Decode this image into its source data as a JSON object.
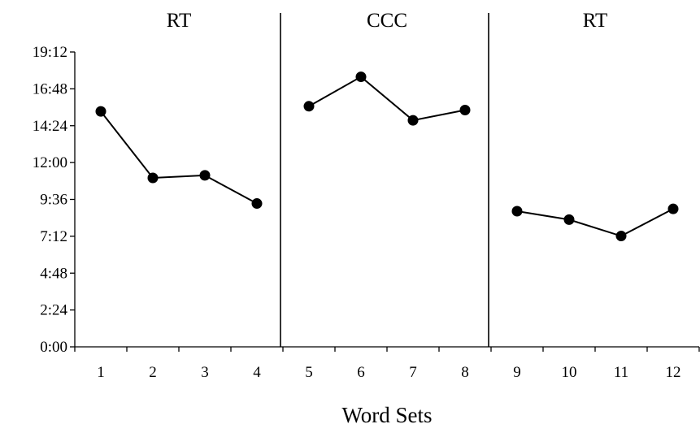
{
  "chart_data": {
    "type": "line",
    "xlabel": "Word Sets",
    "ylabel": "",
    "x": [
      "1",
      "2",
      "3",
      "4",
      "5",
      "6",
      "7",
      "8",
      "9",
      "10",
      "11",
      "12"
    ],
    "y_ticks": [
      "0:00",
      "2:24",
      "4:48",
      "7:12",
      "9:36",
      "12:00",
      "14:24",
      "16:48",
      "19:12"
    ],
    "ylim": [
      0,
      1152
    ],
    "y_unit": "seconds (m:ss)",
    "phases": [
      {
        "label": "RT",
        "sets": [
          "1",
          "2",
          "3",
          "4"
        ]
      },
      {
        "label": "CCC",
        "sets": [
          "5",
          "6",
          "7",
          "8"
        ]
      },
      {
        "label": "RT",
        "sets": [
          "9",
          "10",
          "11",
          "12"
        ]
      }
    ],
    "series": [
      {
        "segment": 1,
        "x": [
          "1",
          "2",
          "3",
          "4"
        ],
        "values": [
          920,
          660,
          670,
          560
        ]
      },
      {
        "segment": 2,
        "x": [
          "5",
          "6",
          "7",
          "8"
        ],
        "values": [
          940,
          1055,
          885,
          925
        ]
      },
      {
        "segment": 3,
        "x": [
          "9",
          "10",
          "11",
          "12"
        ],
        "values": [
          530,
          497,
          433,
          539
        ]
      }
    ],
    "grid": false,
    "legend": "none",
    "line_color": "#000000",
    "marker_color": "#000000"
  }
}
